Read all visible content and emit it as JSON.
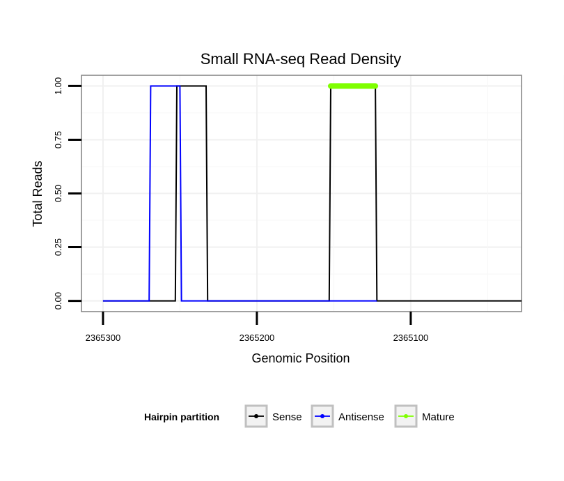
{
  "chart_data": {
    "type": "line",
    "title": "Small RNA-seq Read Density",
    "xlabel": "Genomic Position",
    "ylabel": "Total Reads",
    "xlim": [
      2365314,
      2365028
    ],
    "ylim": [
      -0.05,
      1.05
    ],
    "x_reversed": true,
    "xticks": [
      2365300,
      2365200,
      2365100
    ],
    "xtick_labels": [
      "2365300",
      "2365200",
      "2365100"
    ],
    "yticks": [
      0.0,
      0.25,
      0.5,
      0.75,
      1.0
    ],
    "ytick_labels": [
      "0.00",
      "0.25",
      "0.50",
      "0.75",
      "1.00"
    ],
    "grid": true,
    "legend_position": "bottom",
    "series": [
      {
        "name": "Sense",
        "color": "#000000",
        "style": "line",
        "x": [
          2365300,
          2365253,
          2365252,
          2365233,
          2365232,
          2365153,
          2365152,
          2365123,
          2365122,
          2365028
        ],
        "y": [
          0,
          0,
          1,
          1,
          0,
          0,
          1,
          1,
          0,
          0
        ]
      },
      {
        "name": "Antisense",
        "color": "#0000ff",
        "style": "line",
        "x": [
          2365300,
          2365270,
          2365269,
          2365253,
          2365252,
          2365250,
          2365249,
          2365153,
          2365152,
          2365123,
          2365122
        ],
        "y": [
          0,
          0,
          1,
          1,
          1,
          1,
          0,
          0,
          0,
          0,
          0
        ]
      },
      {
        "name": "Mature",
        "color": "#7fff00",
        "style": "thick-segment",
        "x": [
          2365152,
          2365123
        ],
        "y": [
          1,
          1
        ]
      }
    ]
  },
  "legend": {
    "title": "Hairpin partition",
    "items": [
      {
        "label": "Sense",
        "color": "#000000"
      },
      {
        "label": "Antisense",
        "color": "#0000ff"
      },
      {
        "label": "Mature",
        "color": "#7fff00"
      }
    ]
  }
}
